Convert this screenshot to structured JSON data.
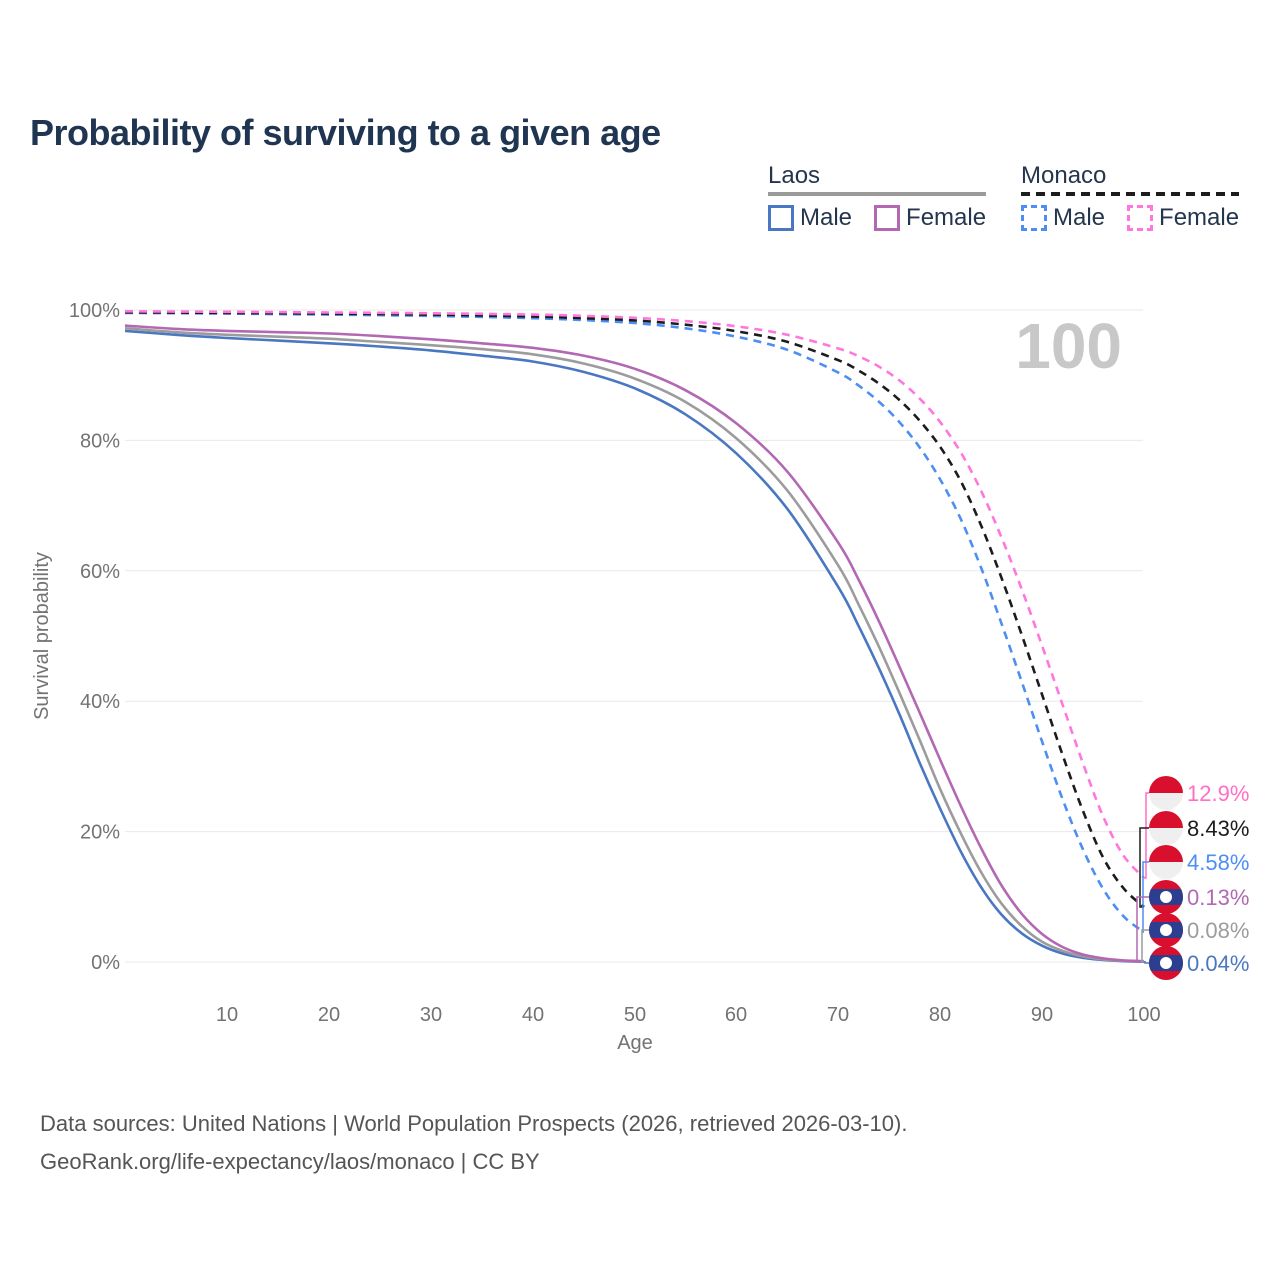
{
  "title": "Probability of surviving to a given age",
  "legend": {
    "groups": [
      {
        "country": "Laos",
        "style": "solid-gray-underline",
        "items": [
          {
            "label": "Male",
            "color": "#4a77c2"
          },
          {
            "label": "Female",
            "color": "#b268b2"
          }
        ]
      },
      {
        "country": "Monaco",
        "style": "dashed-black-underline",
        "items": [
          {
            "label": "Male",
            "color": "#4d8ef5"
          },
          {
            "label": "Female",
            "color": "#ff77dd"
          }
        ]
      }
    ]
  },
  "chart_data": {
    "type": "line",
    "title": "Probability of surviving to a given age",
    "xlabel": "Age",
    "ylabel": "Survival probability",
    "xlim": [
      0,
      100
    ],
    "ylim": [
      0,
      100
    ],
    "grid": "horizontal",
    "x_tick_labels": [
      "10",
      "20",
      "30",
      "40",
      "50",
      "60",
      "70",
      "80",
      "90",
      "100"
    ],
    "y_tick_labels": [
      "100%",
      "80%",
      "60%",
      "40%",
      "20%",
      "0%"
    ],
    "watermark_age": "100",
    "series": [
      {
        "id": "monaco-male",
        "name": "Monaco Male",
        "color": "#4d8ef5",
        "dashed": true,
        "points": [
          [
            0,
            99.55
          ],
          [
            10,
            99.45
          ],
          [
            20,
            99.3
          ],
          [
            30,
            99.1
          ],
          [
            40,
            98.75
          ],
          [
            45,
            98.45
          ],
          [
            50,
            98.0
          ],
          [
            55,
            97.2
          ],
          [
            60,
            95.9
          ],
          [
            65,
            93.9
          ],
          [
            70,
            90.4
          ],
          [
            72,
            88.4
          ],
          [
            74,
            85.9
          ],
          [
            76,
            82.8
          ],
          [
            78,
            78.9
          ],
          [
            80,
            74.0
          ],
          [
            82,
            68.0
          ],
          [
            84,
            60.5
          ],
          [
            86,
            52.0
          ],
          [
            88,
            43.0
          ],
          [
            90,
            33.8
          ],
          [
            92,
            25.0
          ],
          [
            94,
            17.3
          ],
          [
            96,
            11.2
          ],
          [
            98,
            7.0
          ],
          [
            100,
            4.58
          ]
        ]
      },
      {
        "id": "monaco-total",
        "name": "Monaco",
        "color": "#1c1c1c",
        "dashed": true,
        "points": [
          [
            0,
            99.65
          ],
          [
            10,
            99.55
          ],
          [
            20,
            99.45
          ],
          [
            30,
            99.3
          ],
          [
            40,
            99.0
          ],
          [
            45,
            98.75
          ],
          [
            50,
            98.4
          ],
          [
            55,
            97.75
          ],
          [
            60,
            96.75
          ],
          [
            65,
            95.1
          ],
          [
            70,
            92.3
          ],
          [
            72,
            90.7
          ],
          [
            74,
            88.7
          ],
          [
            76,
            86.2
          ],
          [
            78,
            83.0
          ],
          [
            80,
            79.0
          ],
          [
            82,
            73.8
          ],
          [
            84,
            67.0
          ],
          [
            86,
            59.0
          ],
          [
            88,
            50.2
          ],
          [
            90,
            41.0
          ],
          [
            92,
            31.8
          ],
          [
            94,
            23.2
          ],
          [
            96,
            16.0
          ],
          [
            98,
            11.3
          ],
          [
            100,
            8.43
          ]
        ]
      },
      {
        "id": "monaco-female",
        "name": "Monaco Female",
        "color": "#ff77dd",
        "dashed": true,
        "points": [
          [
            0,
            99.8
          ],
          [
            10,
            99.72
          ],
          [
            20,
            99.62
          ],
          [
            30,
            99.5
          ],
          [
            40,
            99.3
          ],
          [
            45,
            99.1
          ],
          [
            50,
            98.8
          ],
          [
            55,
            98.3
          ],
          [
            60,
            97.5
          ],
          [
            65,
            96.2
          ],
          [
            70,
            94.1
          ],
          [
            72,
            92.9
          ],
          [
            74,
            91.3
          ],
          [
            76,
            89.2
          ],
          [
            78,
            86.4
          ],
          [
            80,
            82.8
          ],
          [
            82,
            78.2
          ],
          [
            84,
            72.3
          ],
          [
            86,
            65.2
          ],
          [
            88,
            57.2
          ],
          [
            90,
            48.5
          ],
          [
            92,
            39.5
          ],
          [
            94,
            30.5
          ],
          [
            96,
            22.3
          ],
          [
            98,
            16.3
          ],
          [
            100,
            12.9
          ]
        ]
      },
      {
        "id": "laos-male",
        "name": "Laos Male",
        "color": "#4a77c2",
        "dashed": false,
        "points": [
          [
            0,
            96.8
          ],
          [
            5,
            96.2
          ],
          [
            10,
            95.7
          ],
          [
            15,
            95.3
          ],
          [
            20,
            94.9
          ],
          [
            25,
            94.4
          ],
          [
            30,
            93.8
          ],
          [
            35,
            93.0
          ],
          [
            40,
            92.1
          ],
          [
            45,
            90.5
          ],
          [
            50,
            88.0
          ],
          [
            55,
            84.0
          ],
          [
            60,
            78.0
          ],
          [
            65,
            69.5
          ],
          [
            70,
            57.5
          ],
          [
            72,
            51.5
          ],
          [
            74,
            45.0
          ],
          [
            76,
            38.0
          ],
          [
            78,
            30.5
          ],
          [
            80,
            23.5
          ],
          [
            82,
            17.0
          ],
          [
            84,
            11.5
          ],
          [
            86,
            7.3
          ],
          [
            88,
            4.4
          ],
          [
            90,
            2.5
          ],
          [
            92,
            1.3
          ],
          [
            94,
            0.65
          ],
          [
            96,
            0.3
          ],
          [
            98,
            0.12
          ],
          [
            100,
            0.04
          ]
        ]
      },
      {
        "id": "laos-total",
        "name": "Laos",
        "color": "#9c9c9c",
        "dashed": false,
        "points": [
          [
            0,
            97.2
          ],
          [
            5,
            96.6
          ],
          [
            10,
            96.2
          ],
          [
            15,
            95.9
          ],
          [
            20,
            95.6
          ],
          [
            25,
            95.1
          ],
          [
            30,
            94.6
          ],
          [
            35,
            94.0
          ],
          [
            40,
            93.2
          ],
          [
            45,
            91.8
          ],
          [
            50,
            89.5
          ],
          [
            55,
            85.9
          ],
          [
            60,
            80.3
          ],
          [
            65,
            72.3
          ],
          [
            70,
            60.8
          ],
          [
            72,
            54.8
          ],
          [
            74,
            48.3
          ],
          [
            76,
            41.3
          ],
          [
            78,
            34.0
          ],
          [
            80,
            26.5
          ],
          [
            82,
            19.8
          ],
          [
            84,
            13.8
          ],
          [
            86,
            9.0
          ],
          [
            88,
            5.5
          ],
          [
            90,
            3.1
          ],
          [
            92,
            1.7
          ],
          [
            94,
            0.85
          ],
          [
            96,
            0.4
          ],
          [
            98,
            0.18
          ],
          [
            100,
            0.08
          ]
        ]
      },
      {
        "id": "laos-female",
        "name": "Laos Female",
        "color": "#b268b2",
        "dashed": false,
        "points": [
          [
            0,
            97.6
          ],
          [
            5,
            97.1
          ],
          [
            10,
            96.8
          ],
          [
            15,
            96.6
          ],
          [
            20,
            96.4
          ],
          [
            25,
            96.0
          ],
          [
            30,
            95.5
          ],
          [
            35,
            94.9
          ],
          [
            40,
            94.2
          ],
          [
            45,
            93.0
          ],
          [
            50,
            91.0
          ],
          [
            55,
            87.7
          ],
          [
            60,
            82.6
          ],
          [
            65,
            75.2
          ],
          [
            70,
            64.3
          ],
          [
            72,
            58.6
          ],
          [
            74,
            52.2
          ],
          [
            76,
            45.3
          ],
          [
            78,
            38.2
          ],
          [
            80,
            31.0
          ],
          [
            82,
            24.0
          ],
          [
            84,
            17.5
          ],
          [
            86,
            11.8
          ],
          [
            88,
            7.4
          ],
          [
            90,
            4.3
          ],
          [
            92,
            2.3
          ],
          [
            94,
            1.15
          ],
          [
            96,
            0.55
          ],
          [
            98,
            0.25
          ],
          [
            100,
            0.13
          ]
        ]
      }
    ],
    "end_labels": [
      {
        "id": "monaco-female",
        "text": "12.9%",
        "value": 12.9,
        "color": "#ff6ec7",
        "flag": "monaco"
      },
      {
        "id": "monaco-total",
        "text": "8.43%",
        "value": 8.43,
        "color": "#1c1c1c",
        "flag": "monaco"
      },
      {
        "id": "monaco-male",
        "text": "4.58%",
        "value": 4.58,
        "color": "#4d8ef5",
        "flag": "monaco"
      },
      {
        "id": "laos-female",
        "text": "0.13%",
        "value": 0.13,
        "color": "#b268b2",
        "flag": "laos"
      },
      {
        "id": "laos-total",
        "text": "0.08%",
        "value": 0.08,
        "color": "#9c9c9c",
        "flag": "laos"
      },
      {
        "id": "laos-male",
        "text": "0.04%",
        "value": 0.04,
        "color": "#4a77c2",
        "flag": "laos"
      }
    ],
    "flag_colors": {
      "red": "#d8102e",
      "monaco_white": "#efefef",
      "laos_blue": "#2b3e8f"
    }
  },
  "footer": {
    "line1": "Data sources: United Nations | World Population Prospects (2026, retrieved 2026-03-10).",
    "line2": "GeoRank.org/life-expectancy/laos/monaco | CC BY"
  }
}
